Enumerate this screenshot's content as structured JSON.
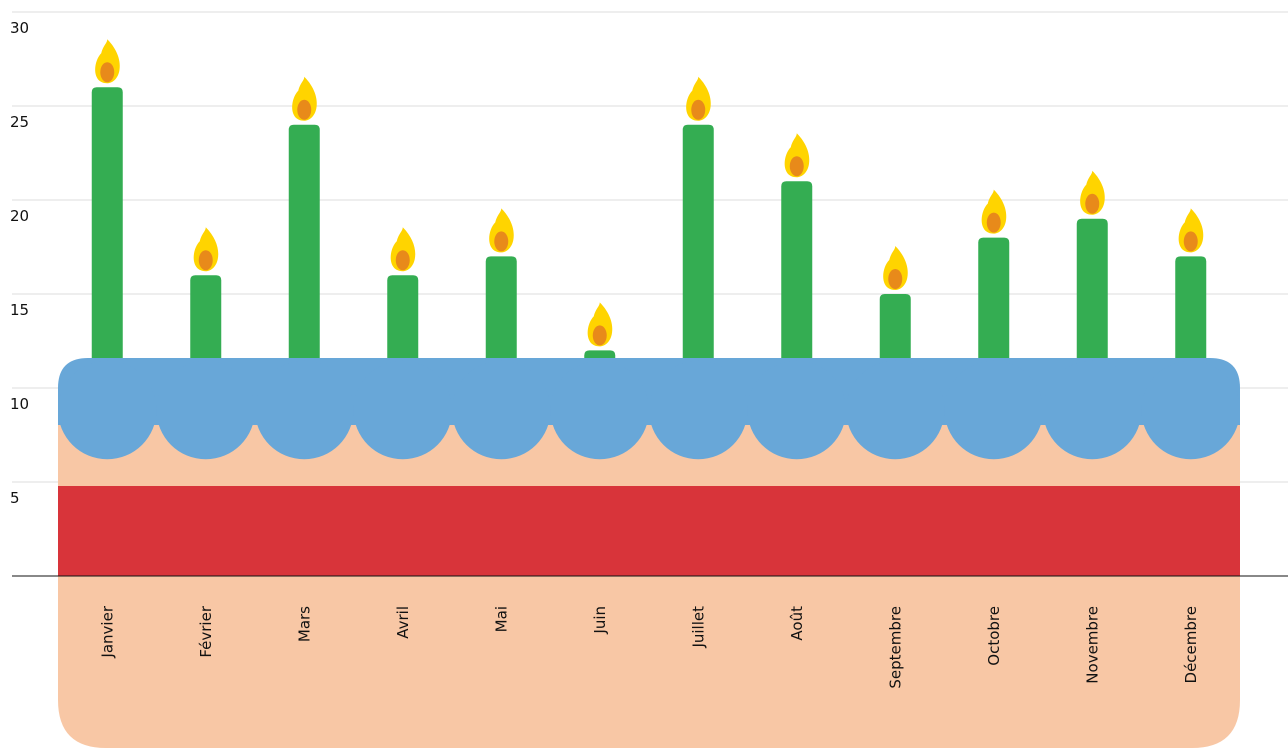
{
  "chart_data": {
    "type": "bar",
    "categories": [
      "Janvier",
      "Février",
      "Mars",
      "Avril",
      "Mai",
      "Juin",
      "Juillet",
      "Août",
      "Septembre",
      "Octobre",
      "Novembre",
      "Décembre"
    ],
    "values": [
      26,
      16,
      24,
      16,
      17,
      12,
      24,
      21,
      15,
      18,
      19,
      17
    ],
    "color": "#34ad52",
    "ylim": [
      0,
      30
    ],
    "yticks": [
      5,
      10,
      15,
      20,
      25,
      30
    ],
    "grid": true
  }
}
